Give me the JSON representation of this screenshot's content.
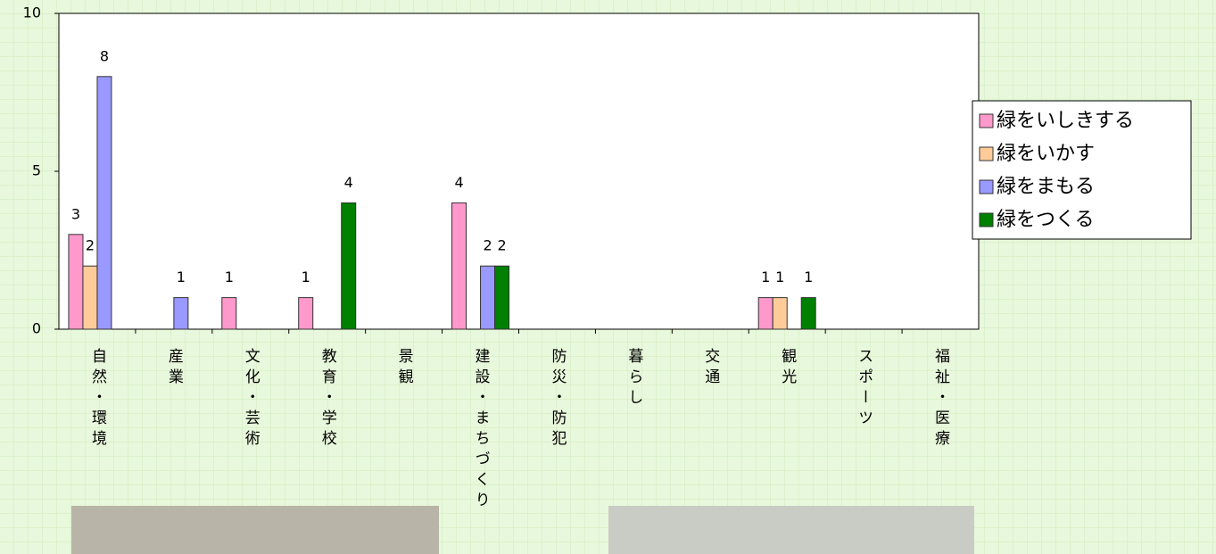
{
  "chart_data": {
    "type": "bar",
    "categories": [
      "自然・環境",
      "産業",
      "文化・芸術",
      "教育・学校",
      "景観",
      "建設・まちづくり",
      "防災・防犯",
      "暮らし",
      "交通",
      "観光",
      "スポーツ",
      "福祉・医療"
    ],
    "series": [
      {
        "name": "緑をいしきする",
        "color": "#ff99cc",
        "values": [
          3,
          0,
          1,
          1,
          0,
          4,
          0,
          0,
          0,
          1,
          0,
          0
        ]
      },
      {
        "name": "緑をいかす",
        "color": "#ffcc99",
        "values": [
          2,
          0,
          0,
          0,
          0,
          0,
          0,
          0,
          0,
          1,
          0,
          0
        ]
      },
      {
        "name": "緑をまもる",
        "color": "#9999ff",
        "values": [
          8,
          1,
          0,
          0,
          0,
          2,
          0,
          0,
          0,
          0,
          0,
          0
        ]
      },
      {
        "name": "緑をつくる",
        "color": "#008000",
        "values": [
          0,
          0,
          0,
          4,
          0,
          2,
          0,
          0,
          0,
          1,
          0,
          0
        ]
      }
    ],
    "ylim": [
      0,
      10
    ],
    "yticks": [
      0,
      5,
      10
    ],
    "grid": false,
    "legend": "right"
  }
}
